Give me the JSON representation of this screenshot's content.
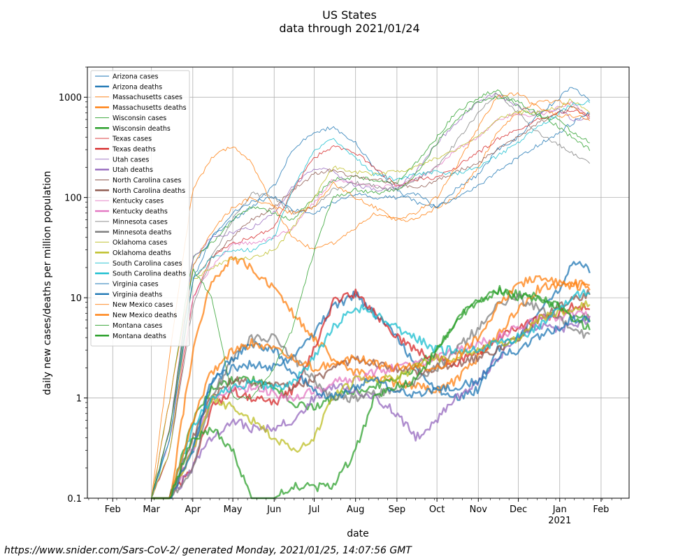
{
  "chart_title": "US States",
  "chart_subtitle": "data through 2021/01/24",
  "footer": "https://www.snider.com/Sars-CoV-2/ generated Monday, 2021/01/25, 14:07:56 GMT",
  "chart_data": {
    "type": "line",
    "title": "US States",
    "subtitle": "data through 2021/01/24",
    "xlabel": "date",
    "ylabel": "daily new cases/deaths per million population",
    "yscale": "log",
    "ylim": [
      0.1,
      2000
    ],
    "xlim": [
      "2020-01-13",
      "2021-02-22"
    ],
    "grid": true,
    "legend_position": "upper-left",
    "x_ticks": [
      {
        "date": "2020-02-01",
        "label": "Feb"
      },
      {
        "date": "2020-03-01",
        "label": "Mar"
      },
      {
        "date": "2020-04-01",
        "label": "Apr"
      },
      {
        "date": "2020-05-01",
        "label": "May"
      },
      {
        "date": "2020-06-01",
        "label": "Jun"
      },
      {
        "date": "2020-07-01",
        "label": "Jul"
      },
      {
        "date": "2020-08-01",
        "label": "Aug"
      },
      {
        "date": "2020-09-01",
        "label": "Sep"
      },
      {
        "date": "2020-10-01",
        "label": "Oct"
      },
      {
        "date": "2020-11-01",
        "label": "Nov"
      },
      {
        "date": "2020-12-01",
        "label": "Dec"
      },
      {
        "date": "2021-01-01",
        "label": "Jan",
        "sublabel": "2021"
      },
      {
        "date": "2021-02-01",
        "label": "Feb"
      }
    ],
    "y_ticks": [
      {
        "value": 0.1,
        "label": "0.1"
      },
      {
        "value": 1,
        "label": "1"
      },
      {
        "value": 10,
        "label": "10"
      },
      {
        "value": 100,
        "label": "100"
      },
      {
        "value": 1000,
        "label": "1000"
      }
    ],
    "dates": [
      "2020-03-01",
      "2020-03-15",
      "2020-04-01",
      "2020-04-15",
      "2020-05-01",
      "2020-05-15",
      "2020-06-01",
      "2020-06-15",
      "2020-07-01",
      "2020-07-15",
      "2020-08-01",
      "2020-08-15",
      "2020-09-01",
      "2020-09-15",
      "2020-10-01",
      "2020-10-15",
      "2020-11-01",
      "2020-11-15",
      "2020-12-01",
      "2020-12-15",
      "2021-01-01",
      "2021-01-10",
      "2021-01-24"
    ],
    "series": [
      {
        "name": "Arizona cases",
        "color": "#1f77b4",
        "kind": "cases",
        "values": [
          0.1,
          0.5,
          20,
          40,
          60,
          80,
          130,
          300,
          450,
          500,
          350,
          200,
          120,
          90,
          80,
          120,
          170,
          300,
          400,
          650,
          1000,
          1300,
          900
        ]
      },
      {
        "name": "Arizona deaths",
        "color": "#1f77b4",
        "kind": "deaths",
        "values": [
          0.1,
          0.1,
          0.3,
          1.5,
          2,
          2.2,
          2,
          2.5,
          4.5,
          8,
          11,
          7,
          4,
          2,
          1.2,
          1,
          1.2,
          3,
          4,
          7,
          12,
          22,
          19
        ]
      },
      {
        "name": "Massachusetts cases",
        "color": "#ff7f0e",
        "kind": "cases",
        "values": [
          0.1,
          3,
          120,
          250,
          330,
          220,
          80,
          40,
          30,
          35,
          50,
          70,
          60,
          60,
          80,
          100,
          200,
          450,
          700,
          900,
          900,
          800,
          620
        ]
      },
      {
        "name": "Massachusetts deaths",
        "color": "#ff7f0e",
        "kind": "deaths",
        "values": [
          0.1,
          0.1,
          3,
          15,
          25,
          20,
          12,
          7,
          4,
          2.5,
          1.8,
          1.6,
          1.4,
          1.3,
          1.2,
          1.5,
          2.5,
          4,
          8,
          12,
          14,
          13,
          13
        ]
      },
      {
        "name": "Wisconsin cases",
        "color": "#2ca02c",
        "kind": "cases",
        "values": [
          0.1,
          1,
          25,
          35,
          60,
          80,
          70,
          60,
          100,
          150,
          160,
          150,
          140,
          220,
          400,
          700,
          1000,
          1200,
          800,
          650,
          600,
          450,
          350
        ]
      },
      {
        "name": "Wisconsin deaths",
        "color": "#2ca02c",
        "kind": "deaths",
        "values": [
          0.1,
          0.1,
          0.6,
          1.2,
          1.5,
          1.5,
          1.3,
          0.9,
          0.8,
          1.0,
          1.2,
          1.3,
          1.6,
          2,
          3,
          6,
          9,
          12,
          11,
          10,
          8,
          7,
          6
        ]
      },
      {
        "name": "Texas cases",
        "color": "#d62728",
        "kind": "cases",
        "values": [
          0.1,
          0.3,
          10,
          25,
          35,
          40,
          50,
          120,
          250,
          320,
          280,
          200,
          130,
          150,
          160,
          200,
          280,
          380,
          480,
          600,
          700,
          750,
          650
        ]
      },
      {
        "name": "Texas deaths",
        "color": "#d62728",
        "kind": "deaths",
        "values": [
          0.1,
          0.1,
          0.2,
          0.8,
          1.2,
          1,
          0.9,
          1.2,
          3,
          9,
          11,
          7,
          4,
          3,
          2.5,
          2.2,
          2.8,
          4,
          5,
          6,
          7,
          8,
          8
        ]
      },
      {
        "name": "Utah cases",
        "color": "#9467bd",
        "kind": "cases",
        "values": [
          0.1,
          0.5,
          25,
          40,
          45,
          50,
          70,
          130,
          200,
          180,
          130,
          120,
          120,
          180,
          350,
          550,
          900,
          1100,
          800,
          700,
          750,
          600,
          600
        ]
      },
      {
        "name": "Utah deaths",
        "color": "#9467bd",
        "kind": "deaths",
        "values": [
          0.1,
          0.1,
          0.2,
          0.4,
          0.6,
          0.5,
          0.5,
          0.6,
          1,
          1.3,
          1.2,
          1,
          0.7,
          0.4,
          0.6,
          1,
          1.5,
          2.5,
          4,
          5,
          5,
          5,
          6
        ]
      },
      {
        "name": "North Carolina cases",
        "color": "#8c564b",
        "kind": "cases",
        "values": [
          0.1,
          0.5,
          15,
          25,
          40,
          60,
          80,
          120,
          170,
          190,
          160,
          150,
          140,
          120,
          150,
          180,
          220,
          300,
          400,
          550,
          700,
          800,
          650
        ]
      },
      {
        "name": "North Carolina deaths",
        "color": "#8c564b",
        "kind": "deaths",
        "values": [
          0.1,
          0.1,
          0.4,
          1,
          1.5,
          1.4,
          1.3,
          1.3,
          1.5,
          2,
          2.5,
          2.2,
          2,
          1.8,
          2,
          2.2,
          2.5,
          3,
          4,
          6,
          8,
          10,
          11
        ]
      },
      {
        "name": "Kentucky cases",
        "color": "#e377c2",
        "kind": "cases",
        "values": [
          0.1,
          0.4,
          10,
          20,
          35,
          35,
          40,
          50,
          90,
          150,
          140,
          130,
          130,
          150,
          200,
          300,
          400,
          600,
          700,
          650,
          800,
          900,
          600
        ]
      },
      {
        "name": "Kentucky deaths",
        "color": "#e377c2",
        "kind": "deaths",
        "values": [
          0.1,
          0.1,
          0.3,
          1,
          1.2,
          1.3,
          1.1,
          1,
          1.2,
          1.4,
          1.6,
          1.8,
          2,
          2.2,
          2.5,
          3,
          3.5,
          4,
          5,
          6,
          6.5,
          7,
          7
        ]
      },
      {
        "name": "Minnesota cases",
        "color": "#7f7f7f",
        "kind": "cases",
        "values": [
          0.1,
          0.3,
          8,
          25,
          60,
          110,
          100,
          70,
          80,
          120,
          140,
          130,
          120,
          150,
          200,
          350,
          700,
          1100,
          700,
          450,
          330,
          280,
          220
        ]
      },
      {
        "name": "Minnesota deaths",
        "color": "#7f7f7f",
        "kind": "deaths",
        "values": [
          0.1,
          0.1,
          0.2,
          1,
          2.5,
          4,
          4,
          2.5,
          1.5,
          1,
          1,
          1.1,
          1.2,
          1.5,
          2,
          3,
          5,
          9,
          10,
          8,
          6,
          5,
          4
        ]
      },
      {
        "name": "Oklahoma cases",
        "color": "#bcbd22",
        "kind": "cases",
        "values": [
          0.1,
          0.3,
          15,
          20,
          25,
          25,
          30,
          50,
          100,
          200,
          180,
          170,
          180,
          200,
          250,
          300,
          400,
          600,
          700,
          700,
          800,
          950,
          700
        ]
      },
      {
        "name": "Oklahoma deaths",
        "color": "#bcbd22",
        "kind": "deaths",
        "values": [
          0.1,
          0.1,
          0.3,
          1,
          0.8,
          0.6,
          0.4,
          0.3,
          0.4,
          1,
          1.5,
          1.5,
          1.6,
          2,
          2.5,
          2.5,
          3,
          3.5,
          4,
          6,
          7,
          8,
          9
        ]
      },
      {
        "name": "South Carolina cases",
        "color": "#17becf",
        "kind": "cases",
        "values": [
          0.1,
          0.4,
          15,
          25,
          30,
          30,
          40,
          120,
          300,
          380,
          250,
          170,
          150,
          170,
          180,
          170,
          200,
          260,
          350,
          500,
          700,
          850,
          900
        ]
      },
      {
        "name": "South Carolina deaths",
        "color": "#17becf",
        "kind": "deaths",
        "values": [
          0.1,
          0.1,
          0.5,
          1,
          1.3,
          1.4,
          1.3,
          1.4,
          2.5,
          5,
          8,
          7,
          5,
          4,
          3,
          3,
          3,
          3.5,
          4,
          5,
          8,
          10,
          12
        ]
      },
      {
        "name": "Virginia cases",
        "color": "#1f77b4",
        "kind": "cases",
        "values": [
          0.1,
          0.4,
          15,
          40,
          70,
          90,
          100,
          75,
          70,
          90,
          110,
          100,
          100,
          110,
          80,
          100,
          130,
          180,
          250,
          330,
          450,
          550,
          700
        ]
      },
      {
        "name": "Virginia deaths",
        "color": "#1f77b4",
        "kind": "deaths",
        "values": [
          0.1,
          0.1,
          0.3,
          1.5,
          2.5,
          3.5,
          3,
          1.8,
          1.2,
          1,
          1.3,
          1.5,
          1.2,
          1.1,
          1.2,
          1.3,
          1.5,
          2.5,
          3,
          4,
          5,
          6,
          6
        ]
      },
      {
        "name": "New Mexico cases",
        "color": "#ff7f0e",
        "kind": "cases",
        "values": [
          0.1,
          1,
          20,
          45,
          80,
          100,
          80,
          70,
          80,
          140,
          100,
          80,
          60,
          70,
          100,
          200,
          500,
          1000,
          1100,
          800,
          650,
          650,
          600
        ]
      },
      {
        "name": "New Mexico deaths",
        "color": "#ff7f0e",
        "kind": "deaths",
        "values": [
          0.1,
          0.1,
          0.6,
          1.8,
          3,
          3.5,
          3,
          2.5,
          2,
          2.2,
          2.5,
          2.2,
          2,
          2,
          2,
          2.5,
          4,
          8,
          14,
          15,
          14,
          14,
          14
        ]
      },
      {
        "name": "Montana cases",
        "color": "#2ca02c",
        "kind": "cases",
        "values": [
          0.1,
          0.5,
          20,
          10,
          1,
          1,
          2,
          5,
          30,
          100,
          120,
          110,
          120,
          170,
          350,
          600,
          900,
          1000,
          900,
          700,
          500,
          400,
          300
        ]
      },
      {
        "name": "Montana deaths",
        "color": "#2ca02c",
        "kind": "deaths",
        "values": [
          0.1,
          0.1,
          0.4,
          0.5,
          0.3,
          0.1,
          0.1,
          0.13,
          0.13,
          0.13,
          0.3,
          1,
          1.3,
          1.5,
          3,
          6,
          9,
          12,
          10,
          10,
          8,
          6,
          5
        ]
      }
    ]
  }
}
